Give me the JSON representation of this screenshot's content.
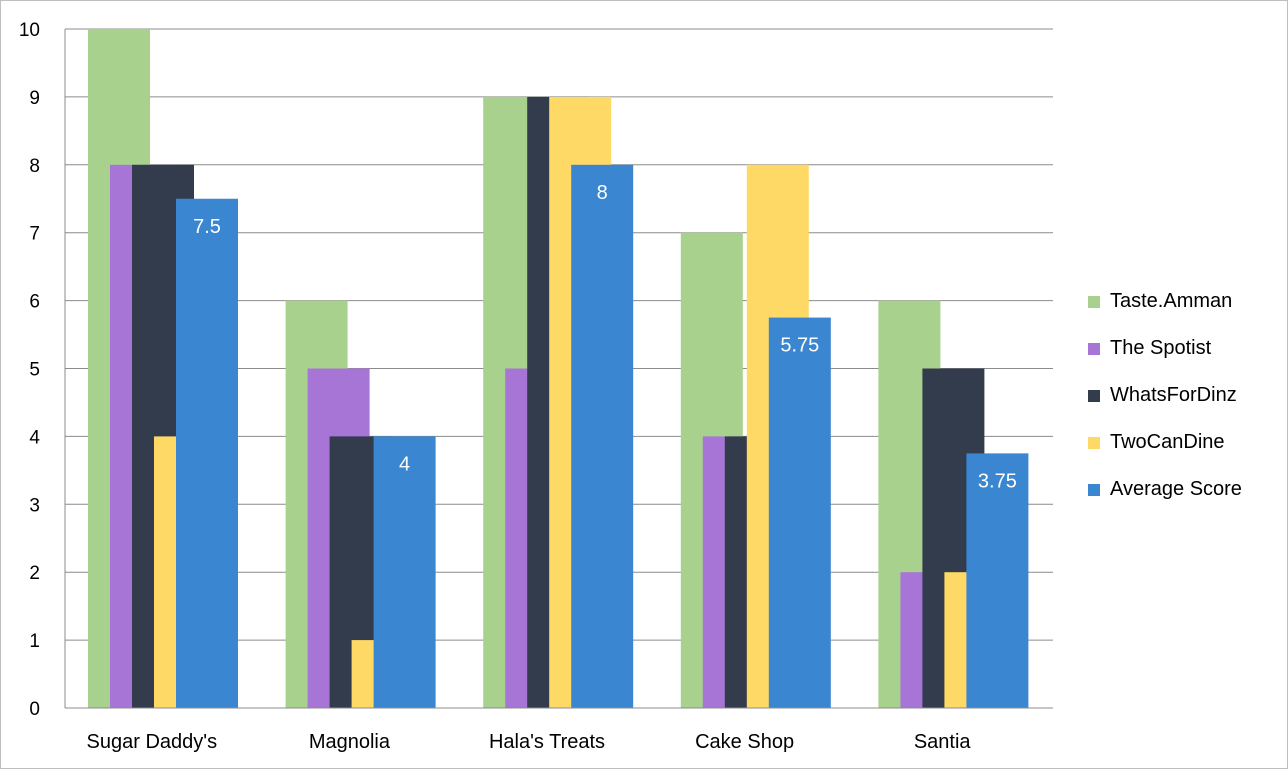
{
  "chart_data": {
    "type": "bar",
    "categories": [
      "Sugar Daddy's",
      "Magnolia",
      "Hala's Treats",
      "Cake Shop",
      "Santia"
    ],
    "series": [
      {
        "name": "Taste.Amman",
        "color": "#a9d18e",
        "values": [
          10,
          6,
          9,
          7,
          6
        ]
      },
      {
        "name": "The Spotist",
        "color": "#a775d6",
        "values": [
          8,
          5,
          5,
          4,
          2
        ]
      },
      {
        "name": "WhatsForDinz",
        "color": "#323c4c",
        "values": [
          8,
          4,
          9,
          4,
          5
        ]
      },
      {
        "name": "TwoCanDine",
        "color": "#ffd966",
        "values": [
          4,
          1,
          9,
          8,
          2
        ]
      },
      {
        "name": "Average Score",
        "color": "#3a86d0",
        "values": [
          7.5,
          4,
          8,
          5.75,
          3.75
        ],
        "data_labels": [
          "7.5",
          "4",
          "8",
          "5.75",
          "3.75"
        ]
      }
    ],
    "ylim": [
      0,
      10
    ],
    "yticks": [
      "0",
      "1",
      "2",
      "3",
      "4",
      "5",
      "6",
      "7",
      "8",
      "9",
      "10"
    ],
    "grid": true,
    "legend": "right"
  }
}
